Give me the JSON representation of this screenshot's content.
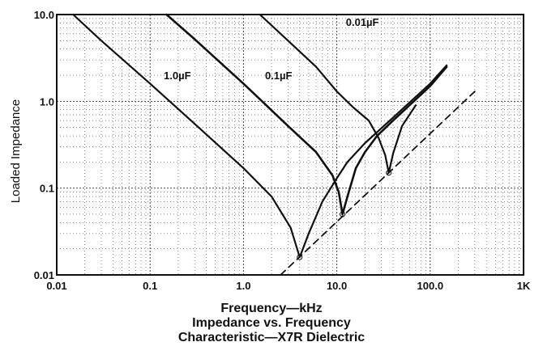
{
  "chart_data": {
    "type": "line",
    "xscale": "log",
    "yscale": "log",
    "xlim": [
      0.01,
      1000
    ],
    "ylim": [
      0.01,
      10.0
    ],
    "x_ticks": [
      "0.01",
      "0.1",
      "1.0",
      "10.0",
      "100.0",
      "1K"
    ],
    "y_ticks": [
      "0.01",
      "0.1",
      "1.0",
      "10.0"
    ],
    "xlabel": "Frequency—kHz",
    "ylabel": "Loaded Impedance",
    "caption": [
      "Impedance vs. Frequency",
      "Characteristic—X7R Dielectric"
    ],
    "grid": "dotted",
    "series": [
      {
        "name": "1.0µF",
        "resonance": {
          "x": 4.0,
          "y": 0.016
        },
        "x": [
          0.015,
          0.03,
          0.1,
          0.3,
          1.0,
          2.0,
          3.2,
          4.0,
          5.0,
          7.0,
          10.0,
          13.0,
          20.0,
          40.0,
          100.0,
          150.0
        ],
        "y": [
          10.0,
          5.0,
          1.6,
          0.55,
          0.17,
          0.08,
          0.035,
          0.016,
          0.03,
          0.07,
          0.13,
          0.2,
          0.33,
          0.65,
          1.6,
          2.6
        ]
      },
      {
        "name": "0.1µF",
        "resonance": {
          "x": 11.5,
          "y": 0.05
        },
        "x": [
          0.15,
          0.3,
          1.0,
          3.0,
          6.0,
          9.0,
          10.5,
          11.5,
          13.0,
          16.0,
          20.0,
          27.0,
          40.0,
          100.0,
          150.0
        ],
        "y": [
          10.0,
          5.2,
          1.6,
          0.52,
          0.26,
          0.14,
          0.09,
          0.05,
          0.08,
          0.17,
          0.26,
          0.4,
          0.6,
          1.5,
          2.5
        ]
      },
      {
        "name": "0.01µF",
        "resonance": {
          "x": 36.0,
          "y": 0.15
        },
        "x": [
          1.5,
          3.0,
          6.0,
          10.0,
          15.0,
          22.0,
          28.0,
          33.0,
          36.0,
          40.0,
          50.0,
          70.0
        ],
        "y": [
          10.0,
          5.0,
          2.5,
          1.3,
          0.85,
          0.6,
          0.38,
          0.24,
          0.15,
          0.25,
          0.52,
          0.9
        ]
      },
      {
        "name": "",
        "style": "dashed",
        "x": [
          2.5,
          300.0
        ],
        "y": [
          0.01,
          1.3
        ]
      }
    ]
  }
}
